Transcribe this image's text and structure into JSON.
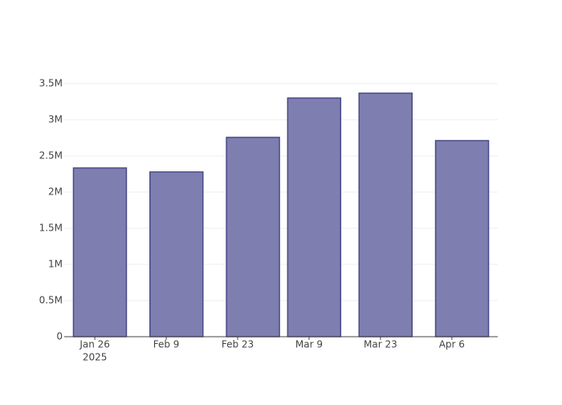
{
  "chart_data": {
    "type": "bar",
    "x": [
      "2025-01-27",
      "2025-02-11",
      "2025-02-26",
      "2025-03-10",
      "2025-03-24",
      "2025-04-08"
    ],
    "values": [
      2333000,
      2278000,
      2756000,
      3300000,
      3367000,
      2711000
    ],
    "color": "#7e7eb0",
    "edge_color": "#4a4a88",
    "xlim": [
      "2025-01-20",
      "2025-04-15"
    ],
    "xticks": [
      {
        "value": "2025-01-26",
        "label": "Jan 26"
      },
      {
        "value": "2025-02-09",
        "label": "Feb 9"
      },
      {
        "value": "2025-02-23",
        "label": "Feb 23"
      },
      {
        "value": "2025-03-09",
        "label": "Mar 9"
      },
      {
        "value": "2025-03-23",
        "label": "Mar 23"
      },
      {
        "value": "2025-04-06",
        "label": "Apr 6"
      }
    ],
    "x_year_label": "2025",
    "ylim": [
      0,
      3500000
    ],
    "yticks": [
      0,
      {
        "value": 500000,
        "label": "0.5M"
      },
      {
        "value": 1000000,
        "label": "1M"
      },
      {
        "value": 1500000,
        "label": "1.5M"
      },
      {
        "value": 2000000,
        "label": "2M"
      },
      {
        "value": 2500000,
        "label": "2.5M"
      },
      {
        "value": 3000000,
        "label": "3M"
      },
      {
        "value": 3500000,
        "label": "3.5M"
      }
    ],
    "grid": true
  }
}
